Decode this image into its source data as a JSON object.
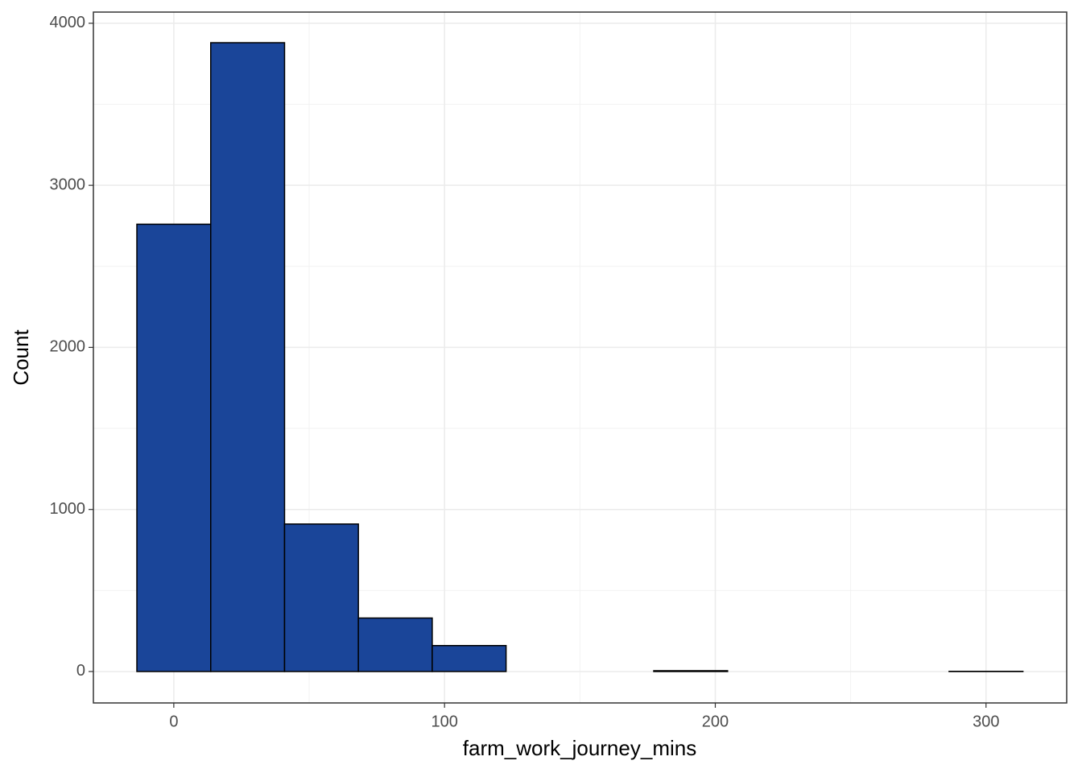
{
  "chart_data": {
    "type": "histogram",
    "x_label": "farm_work_journey_mins",
    "y_label": "Count",
    "bins": [
      -13.64,
      13.64,
      40.91,
      68.18,
      95.45,
      122.73,
      150,
      177.27,
      204.55,
      231.82,
      259.09,
      286.36,
      313.64
    ],
    "values": [
      2760,
      3880,
      910,
      330,
      160,
      0,
      0,
      5,
      0,
      0,
      0,
      1
    ],
    "color": "#1a4599",
    "edge_color": "#000000",
    "xlim": [
      -29.7,
      329.8
    ],
    "ylim": [
      -194,
      4069
    ],
    "xticks": [
      0,
      100,
      200,
      300
    ],
    "yticks": [
      0,
      1000,
      2000,
      3000,
      4000
    ],
    "xminor": [
      50,
      150,
      250
    ],
    "yminor": [
      500,
      1500,
      2500,
      3500
    ],
    "grid": true
  }
}
